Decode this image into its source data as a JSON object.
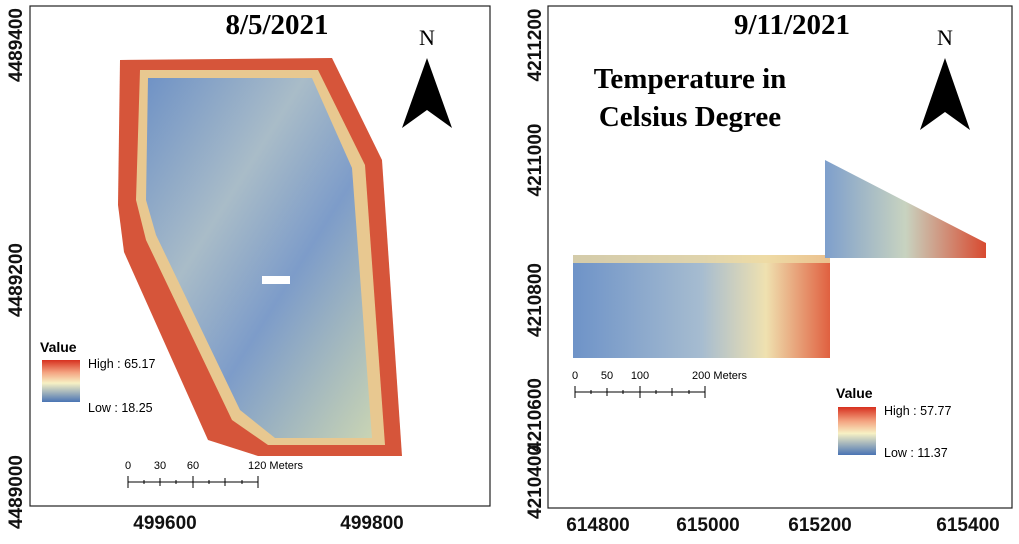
{
  "panels": [
    {
      "date": "8/5/2021",
      "north": "N",
      "legend": {
        "title": "Value",
        "high": "High : 65.17",
        "low": "Low : 18.25"
      },
      "scale_bar": [
        "0",
        "30",
        "60",
        "120 Meters"
      ],
      "y_labels": [
        "4489400",
        "4489200",
        "4489000"
      ],
      "x_labels": [
        "499600",
        "499800"
      ]
    },
    {
      "date": "9/11/2021",
      "note": [
        "Temperature in",
        "Celsius Degree"
      ],
      "north": "N",
      "legend": {
        "title": "Value",
        "high": "High : 57.77",
        "low": "Low : 11.37"
      },
      "scale_bar": [
        "0",
        "50",
        "100",
        "200 Meters"
      ],
      "y_labels": [
        "4211200",
        "4211000",
        "4210800",
        "4210600",
        "4210400"
      ],
      "x_labels": [
        "614800",
        "615000",
        "615200",
        "615400"
      ]
    }
  ]
}
